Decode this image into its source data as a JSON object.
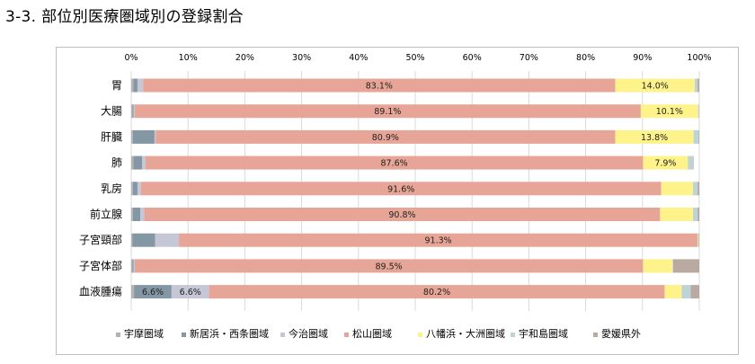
{
  "title": "3-3. 部位別医療圏域別の登録割合",
  "chart_data": {
    "type": "bar",
    "orientation": "horizontal",
    "stacked": true,
    "title": "",
    "xlabel": "",
    "ylabel": "",
    "xlim": [
      0,
      100
    ],
    "xticks": [
      "0%",
      "10%",
      "20%",
      "30%",
      "40%",
      "50%",
      "60%",
      "70%",
      "80%",
      "90%",
      "100%"
    ],
    "grid": true,
    "legend_position": "bottom",
    "categories": [
      "胃",
      "大腸",
      "肝臓",
      "肺",
      "乳房",
      "前立腺",
      "子宮頸部",
      "子宮体部",
      "血液腫瘍"
    ],
    "series": [
      {
        "name": "宇摩圏域",
        "color": "#b4b4b4",
        "values": [
          0.4,
          0.2,
          0.3,
          0.4,
          0.3,
          0.3,
          0.2,
          0.2,
          0.5
        ],
        "labels": [
          "",
          "",
          "",
          "",
          "",
          "",
          "",
          "",
          ""
        ]
      },
      {
        "name": "新居浜・西条圏域",
        "color": "#8497a4",
        "values": [
          0.7,
          0.2,
          3.8,
          1.5,
          0.8,
          1.3,
          4.0,
          0.2,
          6.6
        ],
        "labels": [
          "",
          "",
          "",
          "",
          "",
          "",
          "",
          "",
          "6.6%"
        ]
      },
      {
        "name": "今治圏域",
        "color": "#c5c7d6",
        "values": [
          1.0,
          0.2,
          0.2,
          0.6,
          0.6,
          0.7,
          4.2,
          0.2,
          6.6
        ],
        "labels": [
          "",
          "",
          "",
          "",
          "",
          "",
          "",
          "",
          "6.6%"
        ]
      },
      {
        "name": "松山圏域",
        "color": "#e7a597",
        "values": [
          83.1,
          89.1,
          80.9,
          87.6,
          91.6,
          90.8,
          91.3,
          89.5,
          80.2
        ],
        "labels": [
          "83.1%",
          "89.1%",
          "80.9%",
          "87.6%",
          "91.6%",
          "90.8%",
          "91.3%",
          "89.5%",
          "80.2%"
        ]
      },
      {
        "name": "八幡浜・大洲圏域",
        "color": "#fdf38a",
        "values": [
          14.0,
          10.1,
          13.8,
          7.9,
          5.6,
          5.8,
          0.1,
          5.2,
          3.0
        ],
        "labels": [
          "14.0%",
          "10.1%",
          "13.8%",
          "7.9%",
          "",
          "",
          "",
          "",
          ""
        ]
      },
      {
        "name": "宇和島圏域",
        "color": "#bdd3d6",
        "values": [
          0.5,
          0.2,
          0.9,
          0.9,
          0.8,
          0.8,
          0.1,
          0.1,
          1.6
        ],
        "labels": [
          "",
          "",
          "",
          "",
          "",
          "",
          "",
          "",
          ""
        ]
      },
      {
        "name": "愛媛県外",
        "color": "#b8aaa0",
        "values": [
          0.3,
          0.0,
          0.1,
          0.1,
          0.3,
          0.3,
          0.1,
          4.6,
          1.5
        ],
        "labels": [
          "",
          "",
          "",
          "",
          "",
          "",
          "",
          "",
          ""
        ]
      }
    ]
  }
}
